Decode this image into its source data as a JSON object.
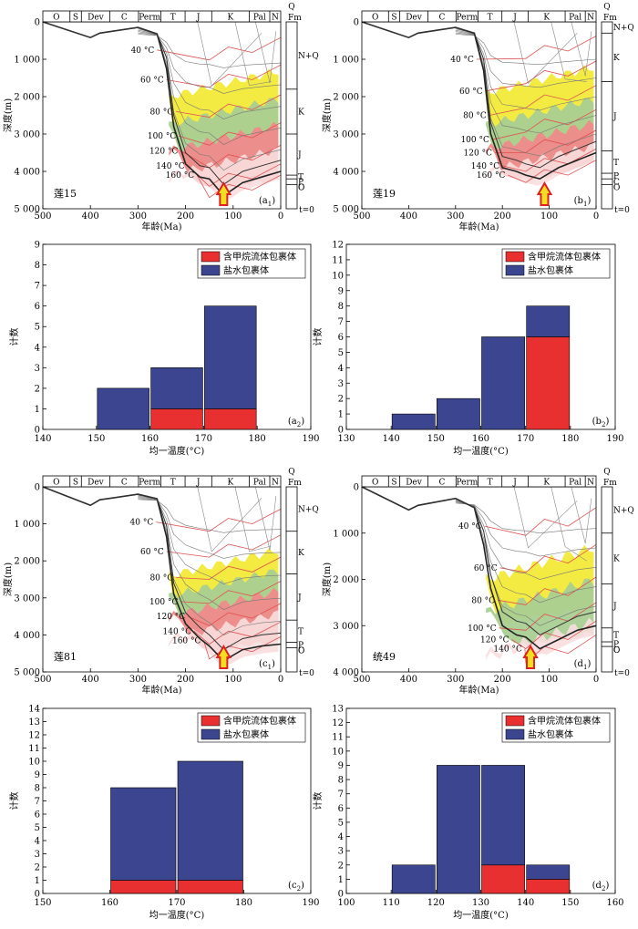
{
  "periods": [
    "O",
    "S",
    "Dev",
    "C",
    "Perm",
    "T",
    "J",
    "K",
    "Pal",
    "N"
  ],
  "formations": [
    "N+Q",
    "K",
    "J",
    "T",
    "P",
    "C",
    "O"
  ],
  "formation_top": "Fm",
  "q_mark": "Q",
  "t_zero": "t=0",
  "depth_label": "深度(m)",
  "age_label": "年龄(Ma)",
  "temp_label": "均一温度(°C)",
  "count_label": "计数",
  "isotherm_labels": [
    "40 °C",
    "60 °C",
    "80 °C",
    "100 °C",
    "120 °C",
    "140 °C",
    "160 °C"
  ],
  "colors": {
    "methane": "#e83030",
    "brine": "#3c4590",
    "oil_window_yellow": "#f2ea38",
    "gas_green": "#a9cf94",
    "gas_red": "#ef8a8a",
    "gas_pink": "#f8dede",
    "isotherm": "#e05050",
    "arrow_fill": "#f0e020",
    "arrow_edge": "#e02020"
  },
  "chart_data": [
    {
      "id": "a1",
      "type": "area",
      "title": "",
      "well": "莲15",
      "panel_label": [
        "a",
        "1"
      ],
      "xlabel": "年龄(Ma)",
      "ylabel": "深度(m)",
      "xlim": [
        500,
        0
      ],
      "ylim": [
        5000,
        0
      ],
      "xticks": [
        500,
        400,
        300,
        200,
        100,
        0
      ],
      "yticks": [
        0,
        1000,
        2000,
        3000,
        4000,
        5000
      ],
      "ytick_labels": [
        "0",
        "1 000",
        "2 000",
        "3 000",
        "4 000",
        "5 000"
      ],
      "period_bounds": [
        500,
        443,
        419,
        359,
        299,
        252,
        201,
        145,
        66,
        23,
        0
      ],
      "formation_bounds": [
        0,
        1800,
        3000,
        4100,
        4200,
        4350
      ],
      "burial_line": {
        "x": [
          500,
          400,
          380,
          300,
          260,
          240,
          225,
          200,
          170,
          150,
          120,
          80,
          40,
          0
        ],
        "y": [
          0,
          420,
          300,
          150,
          320,
          1250,
          2800,
          3800,
          4150,
          4200,
          4650,
          4300,
          4150,
          4000
        ]
      },
      "isotherms": [
        {
          "label": "40 °C",
          "y_end": 420,
          "x_at_label": 260,
          "depth_at_label": 750
        },
        {
          "label": "60 °C",
          "y_end": 1150,
          "x_at_label": 240,
          "depth_at_label": 1550
        },
        {
          "label": "80 °C",
          "y_end": 1950,
          "x_at_label": 220,
          "depth_at_label": 2400
        },
        {
          "label": "100 °C",
          "y_end": 2700,
          "x_at_label": 214,
          "depth_at_label": 3050
        },
        {
          "label": "120 °C",
          "y_end": 3300,
          "x_at_label": 210,
          "depth_at_label": 3450
        },
        {
          "label": "140 °C",
          "y_end": 3800,
          "x_at_label": 196,
          "depth_at_label": 3850
        },
        {
          "label": "160 °C",
          "y_end": 4100,
          "x_at_label": 176,
          "depth_at_label": 4100
        }
      ],
      "zones": [
        {
          "name": "yellow",
          "top": 1300,
          "bottom": 2900
        },
        {
          "name": "green",
          "top": 2050,
          "bottom": 3600
        },
        {
          "name": "red",
          "top": 2750,
          "bottom": 4200
        },
        {
          "name": "pink",
          "top": 3400,
          "bottom": 4600
        }
      ],
      "arrow_age": 120
    },
    {
      "id": "b1",
      "type": "area",
      "title": "",
      "well": "莲19",
      "panel_label": [
        "b",
        "1"
      ],
      "xlabel": "年龄(Ma)",
      "ylabel": "深度(m)",
      "xlim": [
        500,
        0
      ],
      "ylim": [
        5000,
        0
      ],
      "xticks": [
        500,
        400,
        300,
        200,
        100,
        0
      ],
      "yticks": [
        0,
        1000,
        2000,
        3000,
        4000,
        5000
      ],
      "ytick_labels": [
        "0",
        "1 000",
        "2 000",
        "3 000",
        "4 000",
        "5 000"
      ],
      "period_bounds": [
        500,
        443,
        419,
        359,
        299,
        252,
        201,
        145,
        66,
        23,
        0
      ],
      "formation_bounds": [
        0,
        300,
        1600,
        3450,
        4050,
        4200,
        4350
      ],
      "burial_line": {
        "x": [
          500,
          400,
          380,
          300,
          260,
          240,
          225,
          200,
          170,
          150,
          120,
          80,
          40,
          0
        ],
        "y": [
          0,
          420,
          300,
          150,
          300,
          1300,
          3000,
          3900,
          4000,
          4100,
          4200,
          3900,
          3700,
          3500
        ]
      },
      "isotherms": [
        {
          "label": "40 °C",
          "y_end": 380,
          "x_at_label": 255,
          "depth_at_label": 1000
        },
        {
          "label": "60 °C",
          "y_end": 1050,
          "x_at_label": 236,
          "depth_at_label": 1850
        },
        {
          "label": "80 °C",
          "y_end": 1700,
          "x_at_label": 228,
          "depth_at_label": 2500
        },
        {
          "label": "100 °C",
          "y_end": 2350,
          "x_at_label": 222,
          "depth_at_label": 3150
        },
        {
          "label": "120 °C",
          "y_end": 2900,
          "x_at_label": 216,
          "depth_at_label": 3500
        },
        {
          "label": "140 °C",
          "y_end": 3400,
          "x_at_label": 200,
          "depth_at_label": 3850
        },
        {
          "label": "160 °C",
          "y_end": 3700,
          "x_at_label": 188,
          "depth_at_label": 4100
        }
      ],
      "zones": [
        {
          "name": "yellow",
          "top": 1200,
          "bottom": 3000
        },
        {
          "name": "green",
          "top": 2050,
          "bottom": 3550
        },
        {
          "name": "red",
          "top": 2700,
          "bottom": 3950
        },
        {
          "name": "pink",
          "top": 3300,
          "bottom": 4200
        }
      ],
      "arrow_age": 110
    },
    {
      "id": "c1",
      "type": "area",
      "title": "",
      "well": "莲81",
      "panel_label": [
        "c",
        "1"
      ],
      "xlabel": "年龄(Ma)",
      "ylabel": "深度(m)",
      "xlim": [
        500,
        0
      ],
      "ylim": [
        5000,
        0
      ],
      "xticks": [
        500,
        400,
        300,
        200,
        100,
        0
      ],
      "yticks": [
        0,
        1000,
        2000,
        3000,
        4000,
        5000
      ],
      "ytick_labels": [
        "0",
        "1 000",
        "2 000",
        "3 000",
        "4 000",
        "5 000"
      ],
      "period_bounds": [
        500,
        443,
        419,
        359,
        299,
        252,
        201,
        145,
        66,
        23,
        0
      ],
      "formation_bounds": [
        0,
        1200,
        2350,
        3600,
        4200,
        4350
      ],
      "burial_line": {
        "x": [
          500,
          400,
          380,
          300,
          260,
          240,
          225,
          200,
          170,
          150,
          120,
          80,
          40,
          0
        ],
        "y": [
          0,
          500,
          350,
          200,
          320,
          1350,
          2900,
          3700,
          4100,
          4300,
          4700,
          4400,
          4300,
          4250
        ]
      },
      "isotherms": [
        {
          "label": "40 °C",
          "y_end": 600,
          "x_at_label": 262,
          "depth_at_label": 950
        },
        {
          "label": "60 °C",
          "y_end": 1300,
          "x_at_label": 240,
          "depth_at_label": 1750
        },
        {
          "label": "80 °C",
          "y_end": 1900,
          "x_at_label": 220,
          "depth_at_label": 2450
        },
        {
          "label": "100 °C",
          "y_end": 2550,
          "x_at_label": 210,
          "depth_at_label": 3100
        },
        {
          "label": "120 °C",
          "y_end": 3150,
          "x_at_label": 195,
          "depth_at_label": 3500
        },
        {
          "label": "140 °C",
          "y_end": 3650,
          "x_at_label": 182,
          "depth_at_label": 3900
        },
        {
          "label": "160 °C",
          "y_end": 4050,
          "x_at_label": 162,
          "depth_at_label": 4150
        }
      ],
      "zones": [
        {
          "name": "yellow",
          "top": 1700,
          "bottom": 3050
        },
        {
          "name": "green",
          "top": 2250,
          "bottom": 3550
        },
        {
          "name": "red",
          "top": 2800,
          "bottom": 4150
        },
        {
          "name": "pink",
          "top": 3400,
          "bottom": 4650
        }
      ],
      "arrow_age": 120
    },
    {
      "id": "d1",
      "type": "area",
      "title": "",
      "well": "统49",
      "panel_label": [
        "d",
        "1"
      ],
      "xlabel": "年龄(Ma)",
      "ylabel": "深度(m)",
      "xlim": [
        500,
        0
      ],
      "ylim": [
        4000,
        0
      ],
      "xticks": [
        500,
        400,
        300,
        200,
        100,
        0
      ],
      "yticks": [
        0,
        1000,
        2000,
        3000,
        4000
      ],
      "ytick_labels": [
        "0",
        "1 000",
        "2 000",
        "3 000",
        "4 000"
      ],
      "period_bounds": [
        500,
        443,
        419,
        359,
        299,
        252,
        201,
        145,
        66,
        23,
        0
      ],
      "formation_bounds": [
        0,
        1000,
        2100,
        3050,
        3350,
        3450
      ],
      "burial_line": {
        "x": [
          500,
          400,
          380,
          300,
          260,
          240,
          225,
          200,
          170,
          150,
          120,
          80,
          40,
          0
        ],
        "y": [
          0,
          500,
          400,
          250,
          450,
          1250,
          2200,
          3000,
          3200,
          3250,
          3500,
          3300,
          3100,
          3000
        ]
      },
      "isotherms": [
        {
          "label": "40 °C",
          "y_end": 450,
          "x_at_label": 238,
          "depth_at_label": 850
        },
        {
          "label": "60 °C",
          "y_end": 1250,
          "x_at_label": 205,
          "depth_at_label": 1750
        },
        {
          "label": "80 °C",
          "y_end": 1950,
          "x_at_label": 210,
          "depth_at_label": 2450
        },
        {
          "label": "100 °C",
          "y_end": 2500,
          "x_at_label": 207,
          "depth_at_label": 3050
        },
        {
          "label": "120 °C",
          "y_end": 2900,
          "x_at_label": 180,
          "depth_at_label": 3300
        },
        {
          "label": "140 °C",
          "y_end": 3200,
          "x_at_label": 152,
          "depth_at_label": 3500
        }
      ],
      "zones": [
        {
          "name": "yellow",
          "top": 1300,
          "bottom": 2600
        },
        {
          "name": "green",
          "top": 2000,
          "bottom": 3150
        },
        {
          "name": "pink",
          "top": 2900,
          "bottom": 3450
        }
      ],
      "arrow_age": 140
    },
    {
      "id": "a2",
      "type": "bar",
      "stacked": true,
      "title": "",
      "panel_label": [
        "a",
        "2"
      ],
      "xlabel": "均一温度(°C)",
      "ylabel": "计数",
      "xlim": [
        140,
        190
      ],
      "ylim": [
        0,
        9
      ],
      "xticks": [
        140,
        150,
        160,
        170,
        180,
        190
      ],
      "yticks": [
        0,
        1,
        2,
        3,
        4,
        5,
        6,
        7,
        8,
        9
      ],
      "bins": [
        [
          150,
          160
        ],
        [
          160,
          170
        ],
        [
          170,
          180
        ]
      ],
      "series": [
        {
          "name": "含甲烷流体包裹体",
          "values": [
            0,
            1,
            1
          ]
        },
        {
          "name": "盐水包裹体",
          "values": [
            2,
            2,
            5
          ]
        }
      ],
      "legend": "top-right"
    },
    {
      "id": "b2",
      "type": "bar",
      "stacked": true,
      "title": "",
      "panel_label": [
        "b",
        "2"
      ],
      "xlabel": "均一温度(°C)",
      "ylabel": "计数",
      "xlim": [
        130,
        190
      ],
      "ylim": [
        0,
        12
      ],
      "xticks": [
        130,
        140,
        150,
        160,
        170,
        180,
        190
      ],
      "yticks": [
        0,
        1,
        2,
        3,
        4,
        5,
        6,
        7,
        8,
        9,
        10,
        11,
        12
      ],
      "bins": [
        [
          140,
          150
        ],
        [
          150,
          160
        ],
        [
          160,
          170
        ],
        [
          170,
          180
        ]
      ],
      "series": [
        {
          "name": "含甲烷流体包裹体",
          "values": [
            0,
            0,
            0,
            6
          ]
        },
        {
          "name": "盐水包裹体",
          "values": [
            1,
            2,
            6,
            2
          ]
        }
      ],
      "legend": "top-right"
    },
    {
      "id": "c2",
      "type": "bar",
      "stacked": true,
      "title": "",
      "panel_label": [
        "c",
        "2"
      ],
      "xlabel": "均一温度(°C)",
      "ylabel": "计数",
      "xlim": [
        150,
        190
      ],
      "ylim": [
        0,
        14
      ],
      "xticks": [
        150,
        160,
        170,
        180,
        190
      ],
      "yticks": [
        0,
        1,
        2,
        3,
        4,
        5,
        6,
        7,
        8,
        9,
        10,
        11,
        12,
        13,
        14
      ],
      "bins": [
        [
          160,
          170
        ],
        [
          170,
          180
        ]
      ],
      "series": [
        {
          "name": "含甲烷流体包裹体",
          "values": [
            1,
            1
          ]
        },
        {
          "name": "盐水包裹体",
          "values": [
            7,
            9
          ]
        }
      ],
      "legend": "top-right"
    },
    {
      "id": "d2",
      "type": "bar",
      "stacked": true,
      "title": "",
      "panel_label": [
        "d",
        "2"
      ],
      "xlabel": "均一温度(°C)",
      "ylabel": "计数",
      "xlim": [
        100,
        160
      ],
      "ylim": [
        0,
        13
      ],
      "xticks": [
        100,
        110,
        120,
        130,
        140,
        150,
        160
      ],
      "yticks": [
        0,
        1,
        2,
        3,
        4,
        5,
        6,
        7,
        8,
        9,
        10,
        11,
        12,
        13
      ],
      "bins": [
        [
          110,
          120
        ],
        [
          120,
          130
        ],
        [
          130,
          140
        ],
        [
          140,
          150
        ]
      ],
      "series": [
        {
          "name": "含甲烷流体包裹体",
          "values": [
            0,
            0,
            2,
            1
          ]
        },
        {
          "name": "盐水包裹体",
          "values": [
            2,
            9,
            7,
            1
          ]
        }
      ],
      "legend": "top-right"
    }
  ]
}
